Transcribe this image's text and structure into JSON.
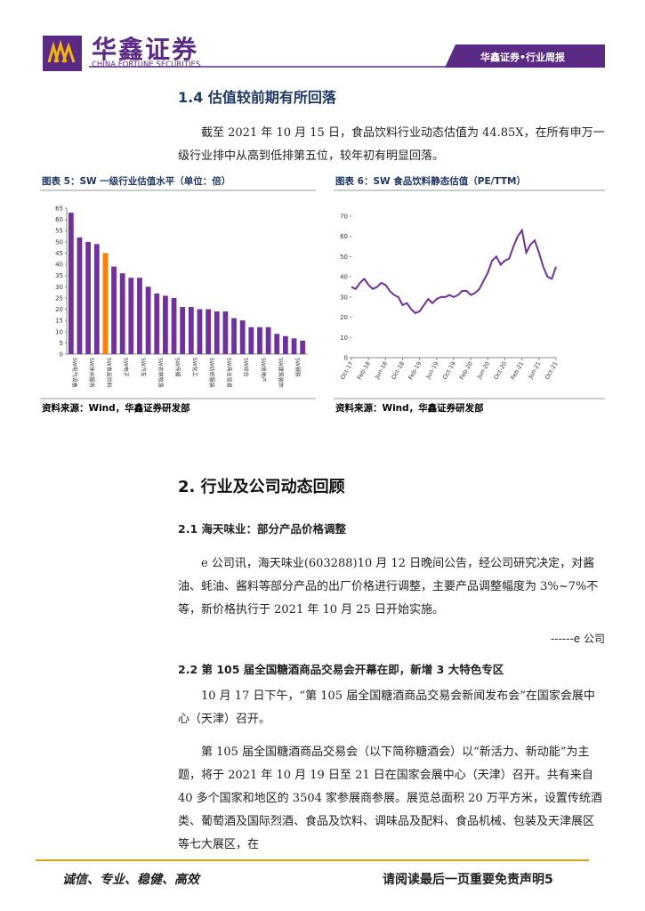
{
  "header": {
    "logo_cn": "华鑫证券",
    "logo_en": "CHINA FORTUNE SECURITIES",
    "report_type": "华鑫证券•行业周报"
  },
  "section_1_4": {
    "heading": "1.4 估值较前期有所回落",
    "paragraph": "截至 2021 年 10 月 15 日，食品饮料行业动态估值为 44.85X，在所有申万一级行业排中从高到低排第五位，较年初有明显回落。"
  },
  "chart_data": [
    {
      "type": "bar",
      "title": "图表 5：SW 一级行业估值水平（单位：倍）",
      "source": "资料来源：Wind，华鑫证券研发部",
      "categories": [
        "SW电气设备",
        null,
        "SW休闲服务",
        null,
        "SW食品饮料",
        null,
        "SW电子",
        null,
        "SW汽车",
        null,
        "SW农林牧渔",
        null,
        "SW传媒",
        null,
        "SW化工",
        null,
        "SW纺织服装",
        null,
        "SW商业贸易",
        null,
        "SW综合",
        null,
        "SW房地产",
        null,
        "SW建筑装饰",
        null,
        "SW钢铁",
        null
      ],
      "values": [
        63,
        52,
        50,
        49,
        45,
        39,
        36,
        34,
        34,
        30,
        27,
        26,
        25,
        21,
        21,
        20,
        20,
        19,
        19,
        16,
        15,
        12,
        12,
        12,
        9,
        8,
        7,
        6
      ],
      "colors": [
        "#7030a0",
        "#7030a0",
        "#7030a0",
        "#7030a0",
        "#ff7f00",
        "#7030a0",
        "#7030a0",
        "#7030a0",
        "#7030a0",
        "#7030a0",
        "#7030a0",
        "#7030a0",
        "#7030a0",
        "#7030a0",
        "#7030a0",
        "#7030a0",
        "#7030a0",
        "#7030a0",
        "#7030a0",
        "#7030a0",
        "#7030a0",
        "#7030a0",
        "#7030a0",
        "#7030a0",
        "#7030a0",
        "#7030a0",
        "#7030a0",
        "#7030a0"
      ],
      "ylim": [
        0,
        65
      ],
      "yticks": [
        0,
        5,
        10,
        15,
        20,
        25,
        30,
        35,
        40,
        45,
        50,
        55,
        60,
        65
      ]
    },
    {
      "type": "line",
      "title": "图表 6：SW 食品饮料静态估值（PE/TTM）",
      "source": "资料来源：Wind，华鑫证券研发部",
      "categories": [
        "Oct-17",
        null,
        null,
        null,
        "Feb-18",
        null,
        null,
        null,
        "Jun-18",
        null,
        null,
        null,
        "Oct-18",
        null,
        null,
        null,
        "Feb-19",
        null,
        null,
        null,
        "Jun-19",
        null,
        null,
        null,
        "Oct-19",
        null,
        null,
        null,
        "Feb-20",
        null,
        null,
        null,
        "Jun-20",
        null,
        null,
        null,
        "Oct-20",
        null,
        null,
        null,
        "Feb-21",
        null,
        null,
        null,
        "Jun-21",
        null,
        null,
        null,
        "Oct-21"
      ],
      "values": [
        35,
        34,
        37,
        39,
        36,
        34,
        35,
        37,
        36,
        33,
        31,
        30,
        26,
        27,
        24,
        22,
        23,
        26,
        29,
        27,
        29,
        30,
        30,
        31,
        30,
        31,
        33,
        33,
        31,
        32,
        34,
        38,
        42,
        48,
        50,
        46,
        48,
        49,
        55,
        60,
        63,
        52,
        56,
        58,
        52,
        45,
        40,
        39,
        45
      ],
      "color": "#7030a0",
      "ylim": [
        0,
        70
      ],
      "yticks": [
        0,
        10,
        20,
        30,
        40,
        50,
        60,
        70
      ]
    }
  ],
  "section_2": {
    "heading": "2. 行业及公司动态回顾",
    "sub_2_1": {
      "heading": "2.1 海天味业：部分产品价格调整",
      "paragraph": "e 公司讯，海天味业(603288)10 月 12 日晚间公告，经公司研究决定，对酱油、蚝油、酱料等部分产品的出厂价格进行调整，主要产品调整幅度为 3%~7%不等，新价格执行于 2021 年 10 月 25 日开始实施。",
      "source": "------e 公司"
    },
    "sub_2_2": {
      "heading": "2.2 第 105 届全国糖酒商品交易会开幕在即，新增 3 大特色专区",
      "paragraphs": [
        "10 月 17 日下午，“第 105 届全国糖酒商品交易会新闻发布会”在国家会展中心（天津）召开。",
        "第 105 届全国糖酒商品交易会（以下简称糖酒会）以“新活力、新动能”为主题，将于 2021 年 10 月 19 日至 21 日在国家会展中心（天津）召开。共有来自 40 多个国家和地区的 3504 家参展商参展。展览总面积 20 万平方米，设置传统酒类、葡萄酒及国际烈酒、食品及饮料、调味品及配料、食品机械、包装及天津展区等七大展区，在"
      ]
    }
  },
  "footer": {
    "motto": "诚信、专业、稳健、高效",
    "disclaimer": "请阅读最后一页重要免责声明5"
  }
}
